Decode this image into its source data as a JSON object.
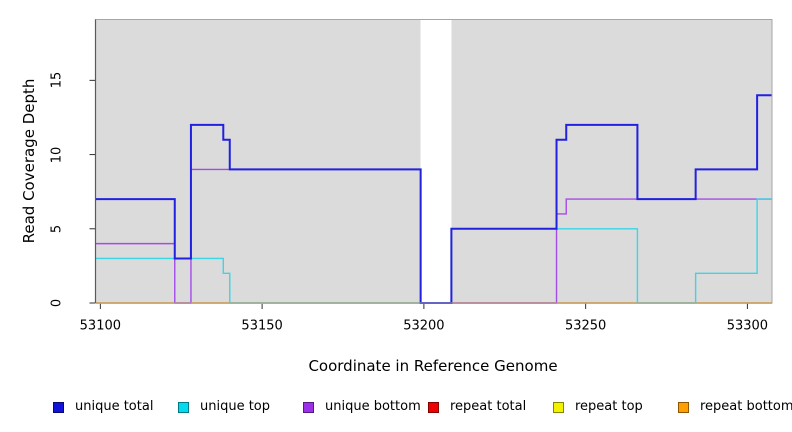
{
  "chart_data": {
    "type": "line",
    "line_style": "step",
    "title": "",
    "xlabel": "Coordinate in Reference Genome",
    "ylabel": "Read Coverage Depth",
    "xlim": [
      53098.5,
      53307.6
    ],
    "ylim": [
      0,
      19.1
    ],
    "x_ticks": [
      53100,
      53150,
      53200,
      53250,
      53300
    ],
    "y_ticks": [
      0,
      5,
      10,
      15
    ],
    "grid": false,
    "plot_bg_color": "#DBDBDB",
    "gap_color": "#FFFFFF",
    "no_data_gap": {
      "x_start": 53199,
      "x_end": 53208.5
    },
    "legend_position": "bottom",
    "series": [
      {
        "name": "unique total",
        "color": "#2121DE",
        "stroke_width": 2,
        "points": [
          [
            53098.5,
            7
          ],
          [
            53123,
            3
          ],
          [
            53128,
            12
          ],
          [
            53138,
            11
          ],
          [
            53140,
            9
          ],
          [
            53199,
            0
          ],
          [
            53208.5,
            5
          ],
          [
            53241,
            11
          ],
          [
            53244,
            12
          ],
          [
            53266,
            7
          ],
          [
            53284,
            9
          ],
          [
            53303,
            14
          ],
          [
            53307.6,
            14
          ]
        ]
      },
      {
        "name": "unique top",
        "color": "#3BD6E6",
        "stroke_width": 1.4,
        "points": [
          [
            53098.5,
            3
          ],
          [
            53138,
            2
          ],
          [
            53140,
            0
          ],
          [
            53199,
            0
          ],
          [
            53208.5,
            5
          ],
          [
            53266,
            0
          ],
          [
            53284,
            2
          ],
          [
            53303,
            7
          ],
          [
            53307.6,
            7
          ]
        ]
      },
      {
        "name": "unique bottom",
        "color": "#A44BE8",
        "stroke_width": 1.4,
        "points": [
          [
            53098.5,
            4
          ],
          [
            53123,
            0
          ],
          [
            53128,
            9
          ],
          [
            53199,
            0
          ],
          [
            53241,
            6
          ],
          [
            53244,
            7
          ],
          [
            53307.6,
            7
          ]
        ]
      },
      {
        "name": "repeat total",
        "color": "#EE0000",
        "stroke_width": 1.2,
        "points": [
          [
            53098.5,
            0
          ],
          [
            53307.6,
            0
          ]
        ]
      },
      {
        "name": "repeat top",
        "color": "#F0F000",
        "stroke_width": 1.2,
        "points": [
          [
            53098.5,
            0
          ],
          [
            53307.6,
            0
          ]
        ]
      },
      {
        "name": "repeat bottom",
        "color": "#FF9E00",
        "stroke_width": 1.6,
        "points": [
          [
            53098.5,
            0
          ],
          [
            53307.6,
            0
          ]
        ]
      }
    ],
    "draw_order": [
      "repeat total",
      "repeat top",
      "repeat bottom",
      "unique bottom",
      "unique top",
      "unique total"
    ]
  },
  "legend": {
    "items": [
      {
        "label": "unique total",
        "color": "#1212D8"
      },
      {
        "label": "unique top",
        "color": "#00DCEE"
      },
      {
        "label": "unique bottom",
        "color": "#9B30E8"
      },
      {
        "label": "repeat total",
        "color": "#EE0000"
      },
      {
        "label": "repeat top",
        "color": "#F2F200"
      },
      {
        "label": "repeat bottom",
        "color": "#FF9E00"
      }
    ]
  },
  "axis_colors": {
    "box": "#A6A6A6",
    "axis_line": "#5A5A5A",
    "tick": "#303030"
  }
}
